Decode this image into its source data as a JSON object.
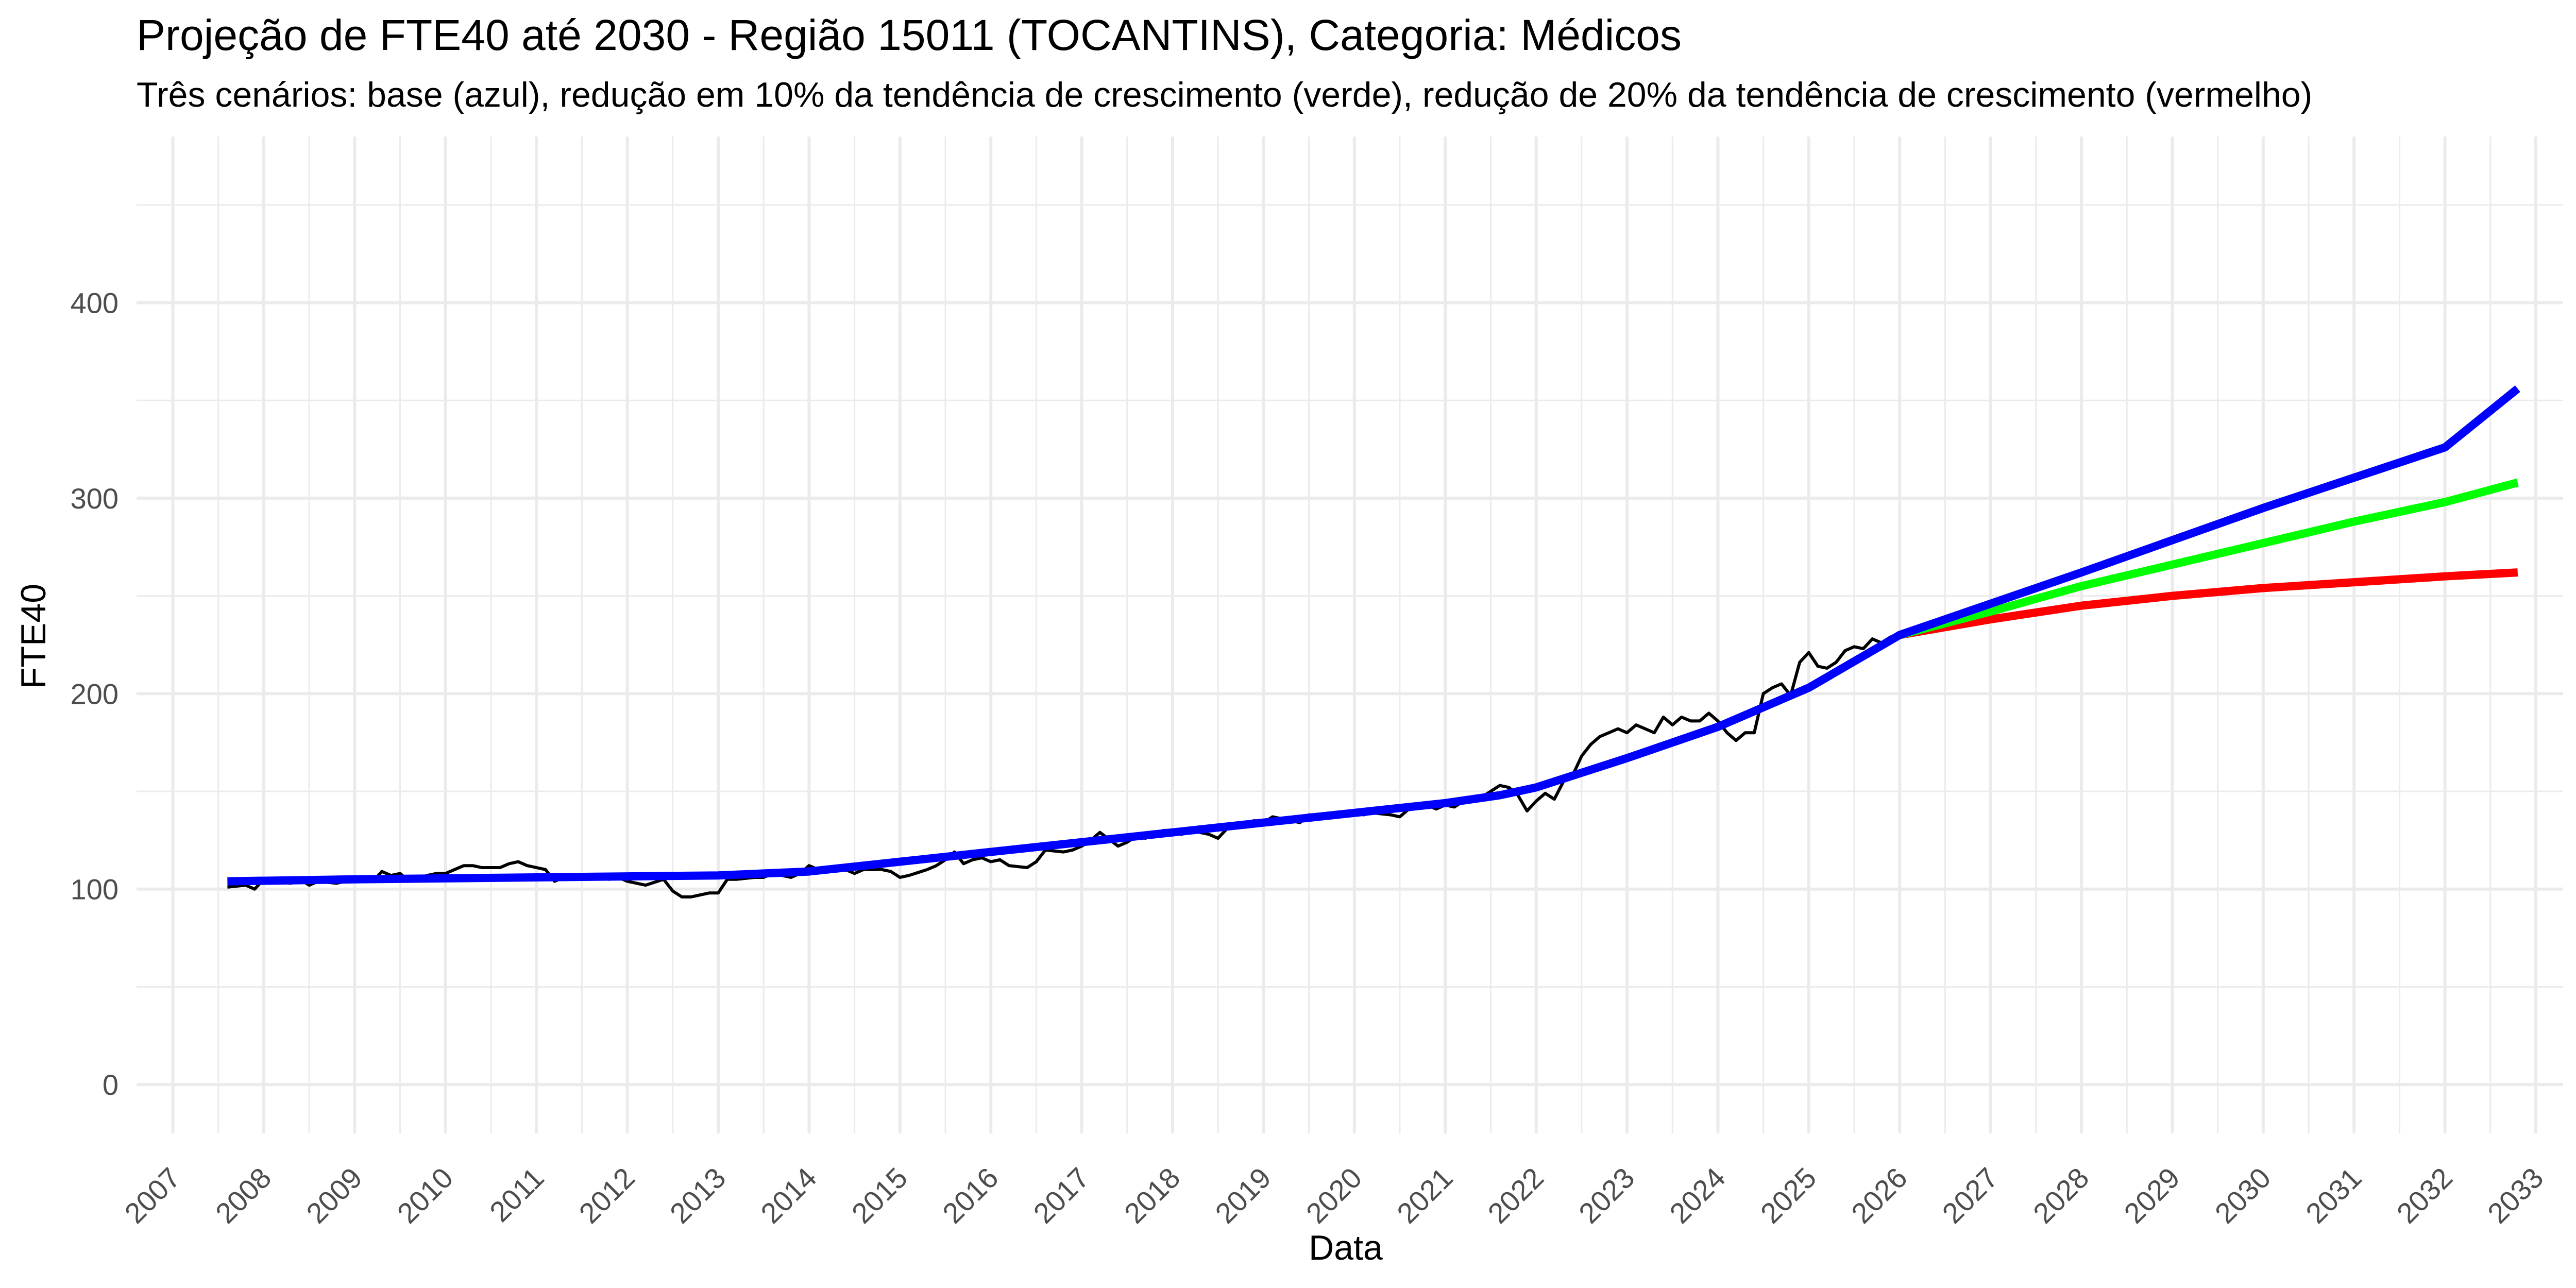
{
  "chart_data": {
    "type": "line",
    "title": "Projeção de FTE40 até 2030 - Região 15011 (TOCANTINS), Categoria: Médicos",
    "subtitle": "Três cenários: base (azul), redução em 10% da tendência de crescimento (verde), redução de 20% da tendência de crescimento (vermelho)",
    "xlabel": "Data",
    "ylabel": "FTE40",
    "xlim": [
      2006.6,
      2033.3
    ],
    "ylim": [
      -25,
      485
    ],
    "x_ticks": [
      "2007",
      "2008",
      "2009",
      "2010",
      "2011",
      "2012",
      "2013",
      "2014",
      "2015",
      "2016",
      "2017",
      "2018",
      "2019",
      "2020",
      "2021",
      "2022",
      "2023",
      "2024",
      "2025",
      "2026",
      "2027",
      "2028",
      "2029",
      "2030",
      "2031",
      "2032",
      "2033"
    ],
    "y_ticks": [
      0,
      100,
      200,
      300,
      400
    ],
    "grid": true,
    "legend": "none",
    "colors": {
      "observed": "#000000",
      "base": "#0000ff",
      "reduction10": "#00ff00",
      "reduction20": "#ff0000",
      "grid": "#ebebeb",
      "tick_text": "#4d4d4d"
    },
    "series": [
      {
        "color": "#000000",
        "points": [
          [
            2007.6,
            101
          ],
          [
            2007.8,
            102
          ],
          [
            2007.9,
            100
          ],
          [
            2008.0,
            105
          ],
          [
            2008.1,
            104
          ],
          [
            2008.3,
            103
          ],
          [
            2008.4,
            105
          ],
          [
            2008.5,
            102
          ],
          [
            2008.6,
            104
          ],
          [
            2008.8,
            103
          ],
          [
            2008.9,
            104
          ],
          [
            2009.0,
            105
          ],
          [
            2009.2,
            104
          ],
          [
            2009.3,
            109
          ],
          [
            2009.4,
            107
          ],
          [
            2009.5,
            108
          ],
          [
            2009.6,
            104
          ],
          [
            2009.8,
            107
          ],
          [
            2009.9,
            108
          ],
          [
            2010.0,
            108
          ],
          [
            2010.2,
            112
          ],
          [
            2010.3,
            112
          ],
          [
            2010.4,
            111
          ],
          [
            2010.6,
            111
          ],
          [
            2010.7,
            113
          ],
          [
            2010.8,
            114
          ],
          [
            2010.9,
            112
          ],
          [
            2011.0,
            111
          ],
          [
            2011.1,
            110
          ],
          [
            2011.2,
            104
          ],
          [
            2011.3,
            106
          ],
          [
            2011.5,
            106
          ],
          [
            2011.6,
            107
          ],
          [
            2011.8,
            105
          ],
          [
            2011.9,
            106
          ],
          [
            2012.0,
            104
          ],
          [
            2012.2,
            102
          ],
          [
            2012.4,
            105
          ],
          [
            2012.5,
            99
          ],
          [
            2012.6,
            96
          ],
          [
            2012.7,
            96
          ],
          [
            2012.9,
            98
          ],
          [
            2013.0,
            98
          ],
          [
            2013.1,
            105
          ],
          [
            2013.2,
            105
          ],
          [
            2013.4,
            106
          ],
          [
            2013.5,
            106
          ],
          [
            2013.6,
            108
          ],
          [
            2013.8,
            106
          ],
          [
            2013.9,
            108
          ],
          [
            2014.0,
            112
          ],
          [
            2014.1,
            110
          ],
          [
            2014.2,
            111
          ],
          [
            2014.4,
            110
          ],
          [
            2014.5,
            108
          ],
          [
            2014.6,
            110
          ],
          [
            2014.8,
            110
          ],
          [
            2014.9,
            109
          ],
          [
            2015.0,
            106
          ],
          [
            2015.1,
            107
          ],
          [
            2015.3,
            110
          ],
          [
            2015.4,
            112
          ],
          [
            2015.5,
            115
          ],
          [
            2015.6,
            119
          ],
          [
            2015.7,
            113
          ],
          [
            2015.8,
            115
          ],
          [
            2015.9,
            116
          ],
          [
            2016.0,
            114
          ],
          [
            2016.1,
            115
          ],
          [
            2016.2,
            112
          ],
          [
            2016.4,
            111
          ],
          [
            2016.5,
            114
          ],
          [
            2016.6,
            120
          ],
          [
            2016.8,
            119
          ],
          [
            2016.9,
            120
          ],
          [
            2017.0,
            122
          ],
          [
            2017.1,
            125
          ],
          [
            2017.2,
            129
          ],
          [
            2017.4,
            122
          ],
          [
            2017.5,
            124
          ],
          [
            2017.6,
            127
          ],
          [
            2017.7,
            126
          ],
          [
            2017.9,
            130
          ],
          [
            2018.0,
            130
          ],
          [
            2018.1,
            128
          ],
          [
            2018.2,
            130
          ],
          [
            2018.4,
            128
          ],
          [
            2018.5,
            126
          ],
          [
            2018.6,
            131
          ],
          [
            2018.8,
            134
          ],
          [
            2018.9,
            135
          ],
          [
            2019.0,
            134
          ],
          [
            2019.1,
            137
          ],
          [
            2019.2,
            136
          ],
          [
            2019.4,
            134
          ],
          [
            2019.5,
            138
          ],
          [
            2019.6,
            138
          ],
          [
            2019.8,
            137
          ],
          [
            2019.9,
            138
          ],
          [
            2020.0,
            140
          ],
          [
            2020.1,
            138
          ],
          [
            2020.2,
            139
          ],
          [
            2020.4,
            138
          ],
          [
            2020.5,
            137
          ],
          [
            2020.6,
            141
          ],
          [
            2020.8,
            143
          ],
          [
            2020.9,
            141
          ],
          [
            2021.0,
            143
          ],
          [
            2021.1,
            142
          ],
          [
            2021.2,
            145
          ],
          [
            2021.4,
            147
          ],
          [
            2021.5,
            150
          ],
          [
            2021.6,
            153
          ],
          [
            2021.7,
            152
          ],
          [
            2021.8,
            148
          ],
          [
            2021.9,
            140
          ],
          [
            2022.0,
            145
          ],
          [
            2022.1,
            149
          ],
          [
            2022.2,
            146
          ],
          [
            2022.3,
            155
          ],
          [
            2022.4,
            158
          ],
          [
            2022.5,
            168
          ],
          [
            2022.6,
            174
          ],
          [
            2022.7,
            178
          ],
          [
            2022.8,
            180
          ],
          [
            2022.9,
            182
          ],
          [
            2023.0,
            180
          ],
          [
            2023.1,
            184
          ],
          [
            2023.2,
            182
          ],
          [
            2023.3,
            180
          ],
          [
            2023.4,
            188
          ],
          [
            2023.5,
            184
          ],
          [
            2023.6,
            188
          ],
          [
            2023.7,
            186
          ],
          [
            2023.8,
            186
          ],
          [
            2023.9,
            190
          ],
          [
            2024.0,
            186
          ],
          [
            2024.1,
            180
          ],
          [
            2024.2,
            176
          ],
          [
            2024.3,
            180
          ],
          [
            2024.4,
            180
          ],
          [
            2024.5,
            200
          ],
          [
            2024.6,
            203
          ],
          [
            2024.7,
            205
          ],
          [
            2024.8,
            199
          ],
          [
            2024.9,
            216
          ],
          [
            2025.0,
            221
          ],
          [
            2025.1,
            214
          ],
          [
            2025.2,
            213
          ],
          [
            2025.3,
            216
          ],
          [
            2025.4,
            222
          ],
          [
            2025.5,
            224
          ],
          [
            2025.6,
            223
          ],
          [
            2025.7,
            228
          ],
          [
            2025.8,
            226
          ],
          [
            2025.9,
            229
          ],
          [
            2026.0,
            230
          ]
        ]
      },
      {
        "color": "#0000ff",
        "points": [
          [
            2007.6,
            104
          ],
          [
            2009.0,
            105
          ],
          [
            2010.0,
            105.5
          ],
          [
            2011.0,
            106
          ],
          [
            2012.0,
            106.5
          ],
          [
            2013.0,
            107
          ],
          [
            2014.0,
            109
          ],
          [
            2015.0,
            114
          ],
          [
            2016.0,
            119
          ],
          [
            2017.0,
            124
          ],
          [
            2018.0,
            129
          ],
          [
            2019.0,
            134
          ],
          [
            2020.0,
            139
          ],
          [
            2021.0,
            144
          ],
          [
            2021.6,
            148
          ],
          [
            2022.0,
            152
          ],
          [
            2023.0,
            167
          ],
          [
            2024.0,
            183
          ],
          [
            2025.0,
            203
          ],
          [
            2026.0,
            230
          ],
          [
            2028.0,
            262
          ],
          [
            2030.0,
            295
          ],
          [
            2032.0,
            326
          ],
          [
            2032.8,
            356
          ]
        ]
      },
      {
        "color": "#00ff00",
        "points": [
          [
            2026.0,
            230
          ],
          [
            2027.0,
            242
          ],
          [
            2028.0,
            255
          ],
          [
            2029.0,
            266
          ],
          [
            2030.0,
            277
          ],
          [
            2031.0,
            288
          ],
          [
            2032.0,
            298
          ],
          [
            2032.8,
            308
          ]
        ]
      },
      {
        "color": "#ff0000",
        "points": [
          [
            2026.0,
            230
          ],
          [
            2027.0,
            238
          ],
          [
            2028.0,
            245
          ],
          [
            2029.0,
            250
          ],
          [
            2030.0,
            254
          ],
          [
            2031.0,
            257
          ],
          [
            2032.0,
            260
          ],
          [
            2032.8,
            262
          ]
        ]
      }
    ]
  }
}
